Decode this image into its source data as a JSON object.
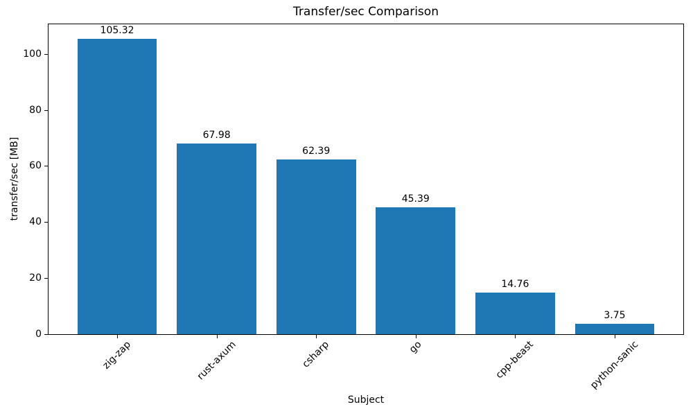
{
  "chart_data": {
    "type": "bar",
    "title": "Transfer/sec Comparison",
    "xlabel": "Subject",
    "ylabel": "transfer/sec [MB]",
    "categories": [
      "zig-zap",
      "rust-axum",
      "csharp",
      "go",
      "cpp-beast",
      "python-sanic"
    ],
    "values": [
      105.32,
      67.98,
      62.39,
      45.39,
      14.76,
      3.75
    ],
    "value_labels": [
      "105.32",
      "67.98",
      "62.39",
      "45.39",
      "14.76",
      "3.75"
    ],
    "yticks": [
      0,
      20,
      40,
      60,
      80,
      100
    ],
    "ylim": [
      0,
      110.59
    ],
    "bar_color": "#1f77b4",
    "axis_color": "#000000",
    "grid": false,
    "legend": null,
    "x_tick_rotation_deg": 45,
    "bar_width_fraction": 0.8
  }
}
